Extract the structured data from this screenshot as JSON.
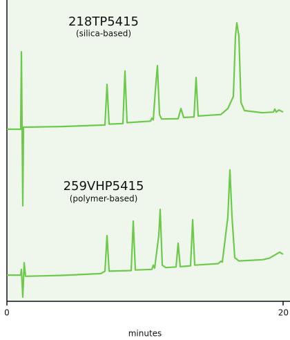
{
  "chart_data": {
    "type": "line",
    "xlabel": "minutes",
    "xlim": [
      0,
      20
    ],
    "xticks": [
      0,
      20
    ],
    "ylim": [
      0,
      100
    ],
    "series": [
      {
        "name": "218TP5415",
        "description": "(silica-based)",
        "color": "#6cc94a",
        "x": [
          0,
          1.0,
          1.05,
          1.15,
          1.2,
          4,
          7.1,
          7.25,
          7.4,
          8.4,
          8.55,
          8.7,
          10.4,
          10.5,
          10.6,
          10.75,
          10.9,
          11.05,
          11.2,
          12.4,
          12.6,
          12.8,
          13.55,
          13.7,
          13.85,
          15.5,
          16.0,
          16.4,
          16.55,
          16.65,
          16.8,
          16.95,
          17.2,
          18.5,
          19.3,
          19.4,
          19.5,
          19.7,
          20
        ],
        "values": [
          57.1,
          57.1,
          82.8,
          31.7,
          57.8,
          58.0,
          58.5,
          72.0,
          58.8,
          59.0,
          76.4,
          59.3,
          59.8,
          60.8,
          60.2,
          70,
          78.2,
          62,
          60.5,
          60.6,
          64.0,
          61.0,
          61.2,
          74.3,
          61.5,
          62,
          64,
          68,
          88,
          92.4,
          88,
          66,
          63.3,
          62.6,
          62.8,
          63.8,
          62.8,
          63.5,
          62.8
        ]
      },
      {
        "name": "259VHP5415",
        "description": "(polymer-based)",
        "color": "#6cc94a",
        "x": [
          0,
          1.0,
          1.05,
          1.15,
          1.25,
          1.35,
          4,
          6.8,
          7.1,
          7.25,
          7.4,
          9.0,
          9.15,
          9.3,
          10.5,
          10.6,
          10.7,
          11.0,
          11.1,
          11.25,
          11.5,
          12.25,
          12.4,
          12.55,
          13.3,
          13.45,
          13.6,
          15.3,
          15.5,
          15.6,
          15.75,
          16.0,
          16.15,
          16.3,
          16.5,
          16.8,
          18.5,
          19.0,
          19.75,
          20
        ],
        "values": [
          8.7,
          8.7,
          10.6,
          1.4,
          12.8,
          8.3,
          8.6,
          9.2,
          10.0,
          21.8,
          10.0,
          10.2,
          26.6,
          10.4,
          10.6,
          12.0,
          11.0,
          22,
          30.5,
          12,
          11.2,
          11.4,
          19.3,
          11.5,
          11.8,
          27.1,
          12.0,
          12.5,
          13.3,
          13.0,
          18.6,
          28,
          43.6,
          28,
          14.5,
          13.4,
          13.8,
          14.3,
          16.3,
          15.6
        ]
      }
    ]
  }
}
